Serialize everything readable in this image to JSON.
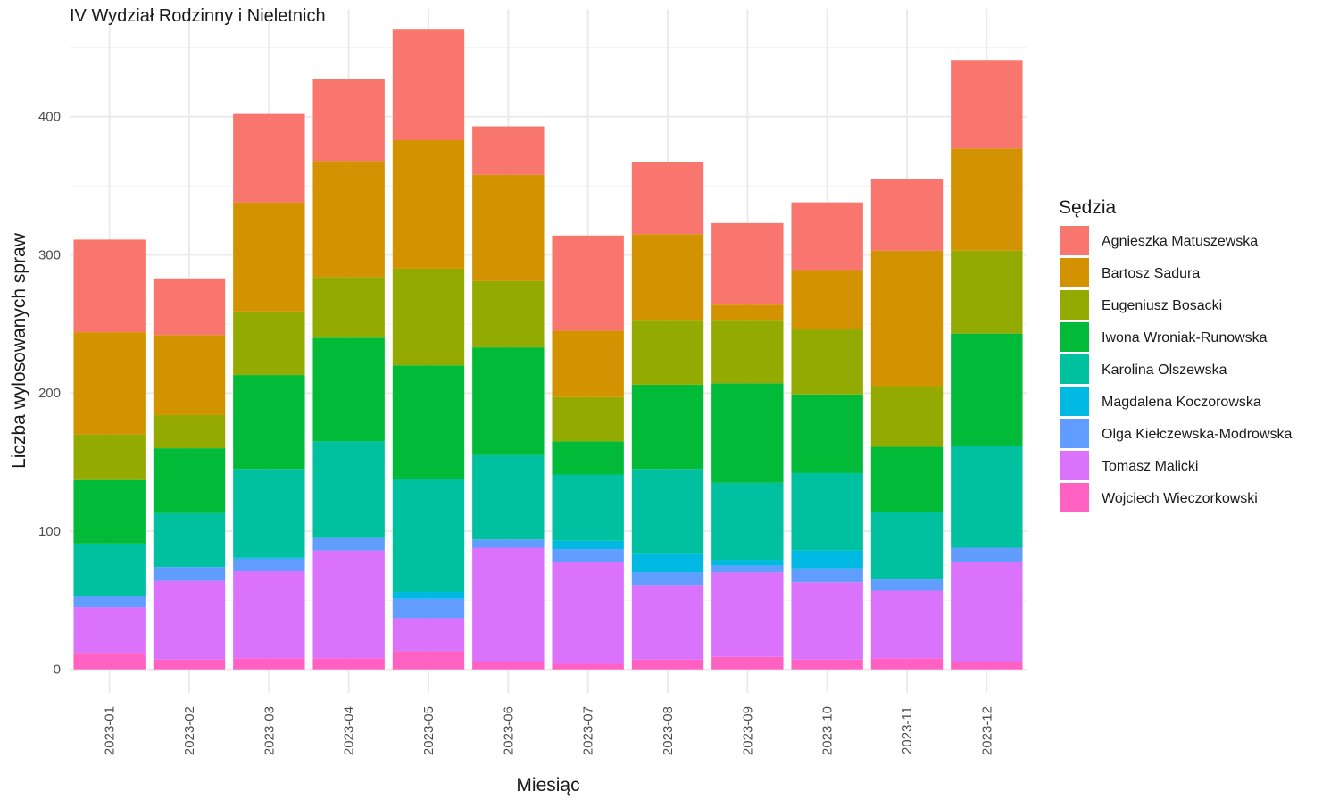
{
  "chart_data": {
    "type": "bar",
    "stacked": true,
    "title": "IV Wydział Rodzinny i Nieletnich",
    "xlabel": "Miesiąc",
    "ylabel": "Liczba wylosowanych spraw",
    "ylim": [
      -17,
      478
    ],
    "yticks": [
      0,
      100,
      200,
      300,
      400
    ],
    "grid": true,
    "legend_title": "Sędzia",
    "legend_position": "right",
    "categories": [
      "2023-01",
      "2023-02",
      "2023-03",
      "2023-04",
      "2023-05",
      "2023-06",
      "2023-07",
      "2023-08",
      "2023-09",
      "2023-10",
      "2023-11",
      "2023-12"
    ],
    "series": [
      {
        "name": "Wojciech Wieczorkowski",
        "color": "#FF61C3",
        "values": [
          12,
          7,
          8,
          8,
          13,
          5,
          4,
          7,
          9,
          7,
          8,
          5
        ]
      },
      {
        "name": "Tomasz Malicki",
        "color": "#DB72FB",
        "values": [
          33,
          57,
          63,
          78,
          24,
          83,
          74,
          54,
          61,
          56,
          49,
          73
        ]
      },
      {
        "name": "Olga Kiełczewska-Modrowska",
        "color": "#619CFF",
        "values": [
          8,
          10,
          9,
          9,
          14,
          6,
          9,
          9,
          5,
          10,
          8,
          10
        ]
      },
      {
        "name": "Magdalena Koczorowska",
        "color": "#00B9E3",
        "values": [
          0,
          0,
          1,
          0,
          5,
          0,
          6,
          14,
          4,
          13,
          0,
          0
        ]
      },
      {
        "name": "Karolina Olszewska",
        "color": "#00C19F",
        "values": [
          38,
          39,
          64,
          70,
          82,
          61,
          48,
          61,
          56,
          56,
          49,
          74
        ]
      },
      {
        "name": "Iwona Wroniak-Runowska",
        "color": "#00BA38",
        "values": [
          46,
          47,
          68,
          75,
          82,
          78,
          24,
          61,
          72,
          57,
          47,
          81
        ]
      },
      {
        "name": "Eugeniusz Bosacki",
        "color": "#93AA00",
        "values": [
          33,
          24,
          46,
          44,
          70,
          48,
          32,
          47,
          46,
          47,
          44,
          60
        ]
      },
      {
        "name": "Bartosz Sadura",
        "color": "#D39200",
        "values": [
          74,
          58,
          79,
          84,
          93,
          77,
          48,
          62,
          11,
          43,
          98,
          74
        ]
      },
      {
        "name": "Agnieszka Matuszewska",
        "color": "#F8766D",
        "values": [
          67,
          41,
          64,
          59,
          80,
          35,
          69,
          52,
          59,
          49,
          52,
          64
        ]
      }
    ],
    "legend_order": [
      "Agnieszka Matuszewska",
      "Bartosz Sadura",
      "Eugeniusz Bosacki",
      "Iwona Wroniak-Runowska",
      "Karolina Olszewska",
      "Magdalena Koczorowska",
      "Olga Kiełczewska-Modrowska",
      "Tomasz Malicki",
      "Wojciech Wieczorkowski"
    ]
  }
}
